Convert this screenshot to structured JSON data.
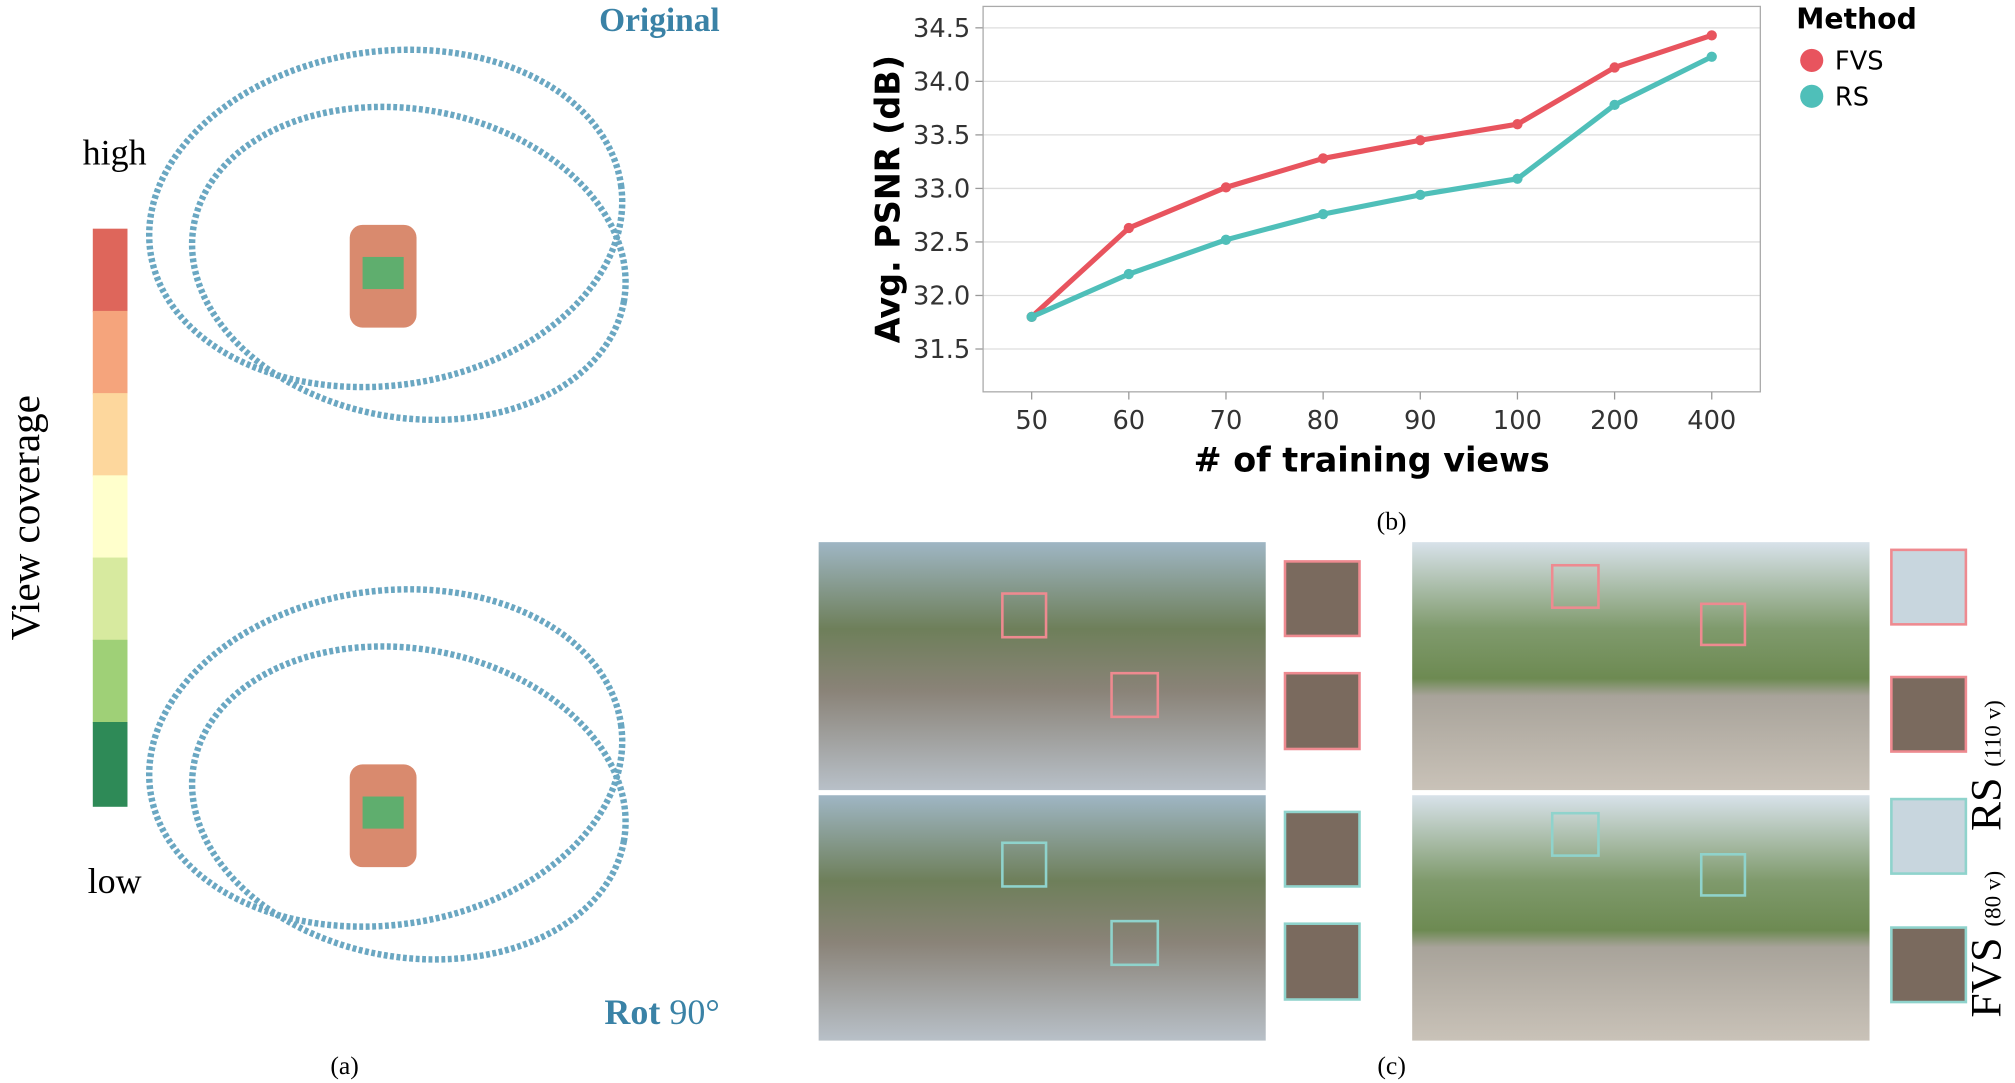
{
  "panel_a": {
    "top_label": "Original",
    "high_label": "high",
    "low_label": "low",
    "colorbar_label": "View coverage",
    "bottom_label_bold": "Rot",
    "bottom_label_angle": "90°",
    "caption": "(a)"
  },
  "chart_data": {
    "type": "line",
    "caption": "(b)",
    "y_label": "Avg. PSNR (dB)",
    "x_label": "# of training views",
    "categories": [
      "50",
      "60",
      "70",
      "80",
      "90",
      "100",
      "200",
      "400"
    ],
    "series": [
      {
        "name": "FVS",
        "color": "#e8545e",
        "values": [
          31.8,
          32.63,
          33.01,
          33.28,
          33.45,
          33.6,
          34.13,
          34.43
        ]
      },
      {
        "name": "RS",
        "color": "#4fbfb9",
        "values": [
          31.8,
          32.2,
          32.52,
          32.76,
          32.94,
          33.09,
          33.78,
          34.23
        ]
      }
    ],
    "ylim": [
      31.1,
      34.7
    ],
    "yticks": [
      31.5,
      {
        "value": 32,
        "label": "32.0"
      },
      32.5,
      {
        "value": 33,
        "label": "33.0"
      },
      33.5,
      {
        "value": 34,
        "label": "34.0"
      },
      34.5
    ],
    "grid": true,
    "legend_title": "Method",
    "legend_position": "right"
  },
  "panel_c": {
    "caption": "(c)",
    "rs_label": "RS",
    "rs_views": "(110 v)",
    "fvs_label": "FVS",
    "fvs_views": "(80 v)"
  }
}
